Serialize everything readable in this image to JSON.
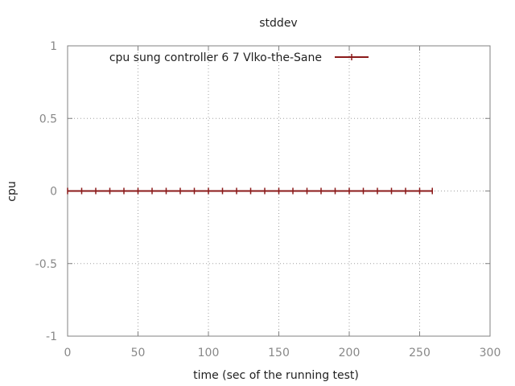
{
  "chart_data": {
    "type": "line",
    "title": "stddev",
    "xlabel": "time (sec of the running test)",
    "ylabel": "cpu",
    "xlim": [
      0,
      300
    ],
    "ylim": [
      -1,
      1
    ],
    "x_ticks": [
      0,
      50,
      100,
      150,
      200,
      250,
      300
    ],
    "x_tick_labels": [
      "0",
      "50",
      "100",
      "150",
      "200",
      "250",
      "300"
    ],
    "y_ticks": [
      -1,
      -0.5,
      0,
      0.5,
      1
    ],
    "y_tick_labels": [
      "-1",
      "-0.5",
      "0",
      "0.5",
      "1"
    ],
    "grid": true,
    "legend_position": "top",
    "series": [
      {
        "name": "cpu sung controller 6 7 Vlko-the-Sane",
        "color": "#8b1a1a",
        "x": [
          0,
          10,
          20,
          30,
          40,
          50,
          60,
          70,
          80,
          90,
          100,
          110,
          120,
          130,
          140,
          150,
          160,
          170,
          180,
          190,
          200,
          210,
          220,
          230,
          240,
          250,
          259
        ],
        "y": [
          0,
          0,
          0,
          0,
          0,
          0,
          0,
          0,
          0,
          0,
          0,
          0,
          0,
          0,
          0,
          0,
          0,
          0,
          0,
          0,
          0,
          0,
          0,
          0,
          0,
          0,
          0
        ]
      }
    ]
  }
}
